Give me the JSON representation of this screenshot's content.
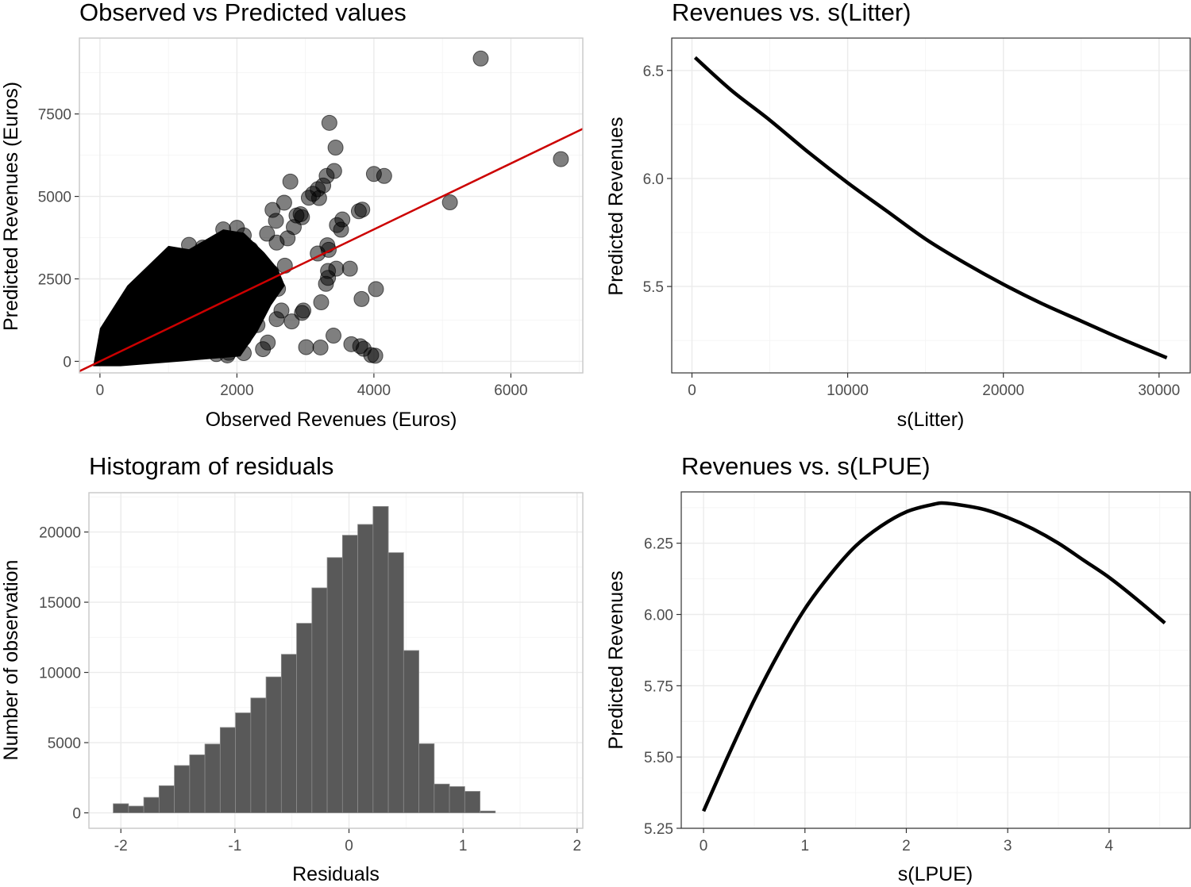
{
  "chart_data": [
    {
      "id": "scatter",
      "type": "scatter",
      "title": "Observed vs Predicted values",
      "xlabel": "Observed Revenues (Euros)",
      "ylabel": "Predicted Revenues (Euros)",
      "xlim": [
        -300,
        7050
      ],
      "ylim": [
        -350,
        9800
      ],
      "xticks": [
        0,
        2000,
        4000,
        6000
      ],
      "xtick_labels": [
        "0",
        "2000",
        "4000",
        "6000"
      ],
      "yticks": [
        0,
        2500,
        5000,
        7500
      ],
      "ytick_labels": [
        "0",
        "2500",
        "5000",
        "7500"
      ],
      "grid": true,
      "point_color": "#000000",
      "point_alpha": 0.5,
      "fit_line": {
        "color": "#cc0000",
        "slope": 1.0,
        "intercept": 0,
        "x_range": [
          -300,
          7050
        ]
      },
      "dense_region_note": "tens of thousands of overlapping points concentrated between 0-2500 observed and 0-4000 predicted",
      "points": [
        [
          5560,
          9180
        ],
        [
          6730,
          6130
        ],
        [
          5110,
          4820
        ],
        [
          3350,
          7230
        ],
        [
          3440,
          6480
        ],
        [
          3420,
          5770
        ],
        [
          4000,
          5680
        ],
        [
          4150,
          5620
        ],
        [
          3310,
          5620
        ],
        [
          2780,
          5450
        ],
        [
          3180,
          5220
        ],
        [
          3260,
          5330
        ],
        [
          3110,
          5080
        ],
        [
          3200,
          4950
        ],
        [
          3050,
          4960
        ],
        [
          2520,
          4590
        ],
        [
          2690,
          4810
        ],
        [
          2930,
          4460
        ],
        [
          3780,
          4550
        ],
        [
          3830,
          4600
        ],
        [
          2570,
          4260
        ],
        [
          3540,
          4300
        ],
        [
          3460,
          4130
        ],
        [
          3520,
          3990
        ],
        [
          2950,
          4370
        ],
        [
          2870,
          4420
        ],
        [
          2830,
          4070
        ],
        [
          2440,
          3870
        ],
        [
          2580,
          3600
        ],
        [
          2740,
          3730
        ],
        [
          3320,
          3520
        ],
        [
          3340,
          3380
        ],
        [
          3180,
          3270
        ],
        [
          3450,
          2810
        ],
        [
          3650,
          2810
        ],
        [
          3330,
          2530
        ],
        [
          3330,
          2740
        ],
        [
          3300,
          2350
        ],
        [
          4030,
          2190
        ],
        [
          3820,
          1890
        ],
        [
          3230,
          1790
        ],
        [
          2970,
          1540
        ],
        [
          2950,
          1470
        ],
        [
          2650,
          1540
        ],
        [
          3410,
          780
        ],
        [
          3670,
          520
        ],
        [
          3800,
          460
        ],
        [
          3850,
          380
        ],
        [
          4020,
          170
        ],
        [
          3960,
          190
        ],
        [
          3010,
          430
        ],
        [
          3220,
          420
        ],
        [
          2450,
          570
        ],
        [
          2380,
          370
        ],
        [
          2800,
          1210
        ],
        [
          2580,
          1280
        ],
        [
          2250,
          1640
        ],
        [
          2060,
          1460
        ],
        [
          1880,
          260
        ],
        [
          1700,
          220
        ],
        [
          1860,
          180
        ],
        [
          2100,
          250
        ],
        [
          1100,
          2080
        ],
        [
          900,
          2760
        ],
        [
          780,
          1640
        ],
        [
          1300,
          3530
        ],
        [
          1500,
          3450
        ],
        [
          1800,
          4000
        ],
        [
          2000,
          4050
        ],
        [
          2100,
          3820
        ],
        [
          1600,
          3300
        ],
        [
          1900,
          3650
        ],
        [
          1200,
          3100
        ],
        [
          1000,
          2600
        ],
        [
          1400,
          2900
        ],
        [
          2200,
          3400
        ],
        [
          1700,
          2200
        ],
        [
          1500,
          1900
        ],
        [
          1100,
          1500
        ],
        [
          900,
          1700
        ],
        [
          700,
          1300
        ],
        [
          500,
          900
        ],
        [
          300,
          700
        ],
        [
          200,
          1100
        ],
        [
          150,
          400
        ],
        [
          100,
          200
        ],
        [
          50,
          100
        ],
        [
          400,
          1300
        ],
        [
          600,
          1800
        ],
        [
          800,
          2000
        ],
        [
          1000,
          1000
        ],
        [
          1200,
          900
        ],
        [
          1400,
          600
        ],
        [
          1600,
          700
        ],
        [
          1800,
          900
        ],
        [
          2000,
          1300
        ],
        [
          2200,
          1900
        ],
        [
          2400,
          2300
        ],
        [
          2500,
          2700
        ],
        [
          2600,
          2200
        ],
        [
          2700,
          2900
        ],
        [
          800,
          500
        ],
        [
          600,
          300
        ],
        [
          400,
          200
        ],
        [
          1000,
          300
        ],
        [
          1300,
          400
        ],
        [
          1500,
          300
        ],
        [
          1200,
          2400
        ],
        [
          1600,
          2600
        ],
        [
          1900,
          2800
        ],
        [
          2100,
          2700
        ],
        [
          2300,
          2500
        ],
        [
          700,
          2200
        ],
        [
          500,
          1500
        ],
        [
          350,
          1000
        ],
        [
          250,
          800
        ],
        [
          150,
          900
        ],
        [
          100,
          600
        ],
        [
          1700,
          1500
        ],
        [
          1900,
          2000
        ],
        [
          2300,
          1100
        ],
        [
          2100,
          700
        ],
        [
          1850,
          500
        ],
        [
          1550,
          1100
        ],
        [
          1350,
          1300
        ],
        [
          1150,
          1700
        ]
      ]
    },
    {
      "id": "histogram",
      "type": "bar",
      "title": "Histogram of residuals",
      "xlabel": "Residuals",
      "ylabel": "Number of observation",
      "xlim": [
        -2.28,
        2.05
      ],
      "ylim": [
        -1100,
        22800
      ],
      "xticks": [
        -2,
        -1,
        0,
        1,
        2
      ],
      "xtick_labels": [
        "-2",
        "-1",
        "0",
        "1",
        "2"
      ],
      "yticks": [
        0,
        5000,
        10000,
        15000,
        20000
      ],
      "ytick_labels": [
        "0",
        "5000",
        "10000",
        "15000",
        "20000"
      ],
      "grid": true,
      "bar_color": "#595959",
      "bar_edge_color": "#8a8a8a",
      "bin_width": 0.134,
      "bin_start": -2.067,
      "values": [
        650,
        480,
        1100,
        1930,
        3370,
        4130,
        4900,
        6080,
        7120,
        8180,
        9680,
        11290,
        13500,
        16020,
        18180,
        19770,
        20540,
        21820,
        18530,
        11560,
        4920,
        2050,
        1870,
        1530,
        130
      ]
    },
    {
      "id": "litter",
      "type": "line",
      "title": "Revenues  vs. s(Litter)",
      "xlabel": "s(Litter)",
      "ylabel": "Predicted Revenues",
      "xlim": [
        -1300,
        32000
      ],
      "ylim": [
        5.1,
        6.65
      ],
      "xticks": [
        0,
        10000,
        20000,
        30000
      ],
      "xtick_labels": [
        "0",
        "10000",
        "20000",
        "30000"
      ],
      "yticks": [
        5.5,
        6.0,
        6.5
      ],
      "ytick_labels": [
        "5.5",
        "6.0",
        "6.5"
      ],
      "grid": true,
      "line_color": "#000000",
      "x": [
        200,
        2500,
        5000,
        7500,
        10000,
        12500,
        15000,
        17500,
        20000,
        22500,
        25000,
        27500,
        30500
      ],
      "y": [
        6.56,
        6.41,
        6.27,
        6.12,
        5.98,
        5.85,
        5.72,
        5.61,
        5.51,
        5.42,
        5.34,
        5.26,
        5.17
      ]
    },
    {
      "id": "lpue",
      "type": "line",
      "title": "Revenues  vs. s(LPUE)",
      "xlabel": "s(LPUE)",
      "ylabel": "Predicted Revenues",
      "xlim": [
        -0.22,
        4.8
      ],
      "ylim": [
        5.25,
        6.43
      ],
      "xticks": [
        0,
        1,
        2,
        3,
        4
      ],
      "xtick_labels": [
        "0",
        "1",
        "2",
        "3",
        "4"
      ],
      "yticks": [
        5.25,
        5.5,
        5.75,
        6.0,
        6.25
      ],
      "ytick_labels": [
        "5.25",
        "5.50",
        "5.75",
        "6.00",
        "6.25"
      ],
      "grid": true,
      "line_color": "#000000",
      "x": [
        0.0,
        0.25,
        0.5,
        0.75,
        1.0,
        1.25,
        1.5,
        1.75,
        2.0,
        2.25,
        2.4,
        2.75,
        3.0,
        3.25,
        3.5,
        3.75,
        4.0,
        4.25,
        4.55
      ],
      "y": [
        5.31,
        5.51,
        5.7,
        5.87,
        6.02,
        6.14,
        6.24,
        6.31,
        6.36,
        6.385,
        6.39,
        6.37,
        6.34,
        6.3,
        6.25,
        6.19,
        6.13,
        6.06,
        5.97
      ]
    }
  ]
}
